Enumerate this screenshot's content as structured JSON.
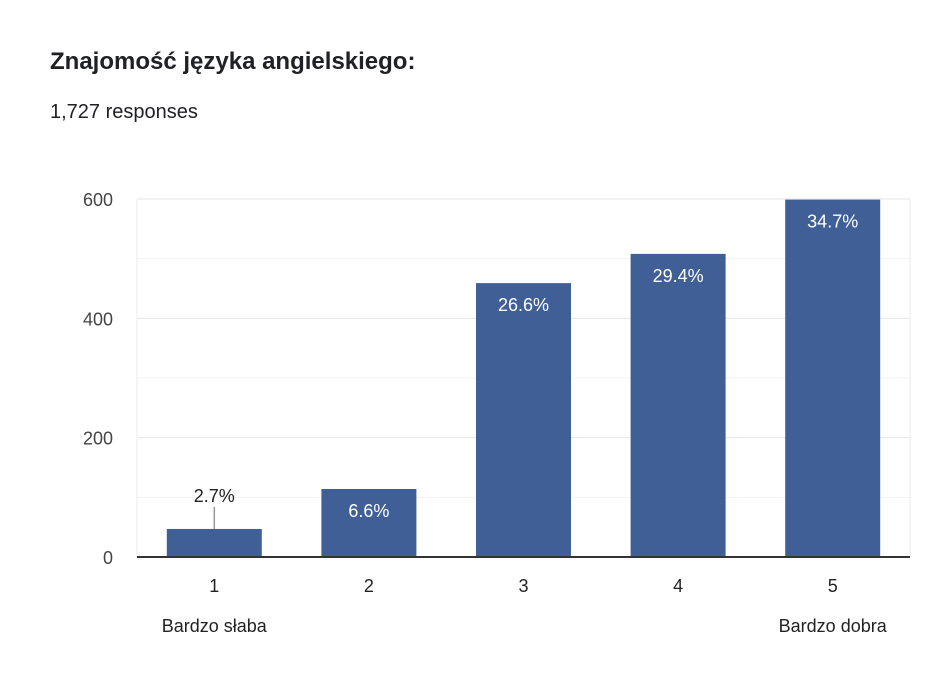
{
  "header": {
    "title": "Znajomość języka angielskiego:",
    "responses": "1,727 responses"
  },
  "chart_data": {
    "type": "bar",
    "title": "Znajomość języka angielskiego:",
    "categories": [
      "1",
      "2",
      "3",
      "4",
      "5"
    ],
    "values": [
      47,
      114,
      459,
      508,
      599
    ],
    "data_labels": [
      "2.7%",
      "6.6%",
      "26.6%",
      "29.4%",
      "34.7%"
    ],
    "yticks": [
      0,
      200,
      400,
      600
    ],
    "ylim": [
      0,
      600
    ],
    "xlabel": "",
    "ylabel": "",
    "grid": true,
    "scale_labels": {
      "low": "Bardzo słaba",
      "high": "Bardzo dobra"
    },
    "bar_color": "#3f5f96"
  }
}
